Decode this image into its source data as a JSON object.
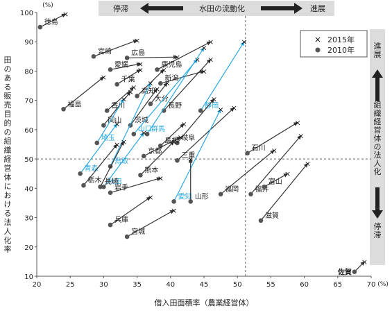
{
  "chart_data": {
    "type": "scatter",
    "title": "",
    "xlabel": "借入田面積率（農業経営体）",
    "ylabel": "田のある販売目的の組織経営体における法人化率",
    "x_unit": "(%)",
    "y_unit": "(%)",
    "xlim": [
      20,
      70
    ],
    "ylim": [
      10,
      100
    ],
    "x_ticks": [
      20,
      25,
      30,
      35,
      40,
      45,
      50,
      55,
      60,
      65,
      70
    ],
    "y_ticks": [
      10,
      20,
      30,
      40,
      50,
      60,
      70,
      80,
      90,
      100
    ],
    "reference_lines": {
      "x": 51.2,
      "y": 50
    },
    "legend": {
      "placement": "top-right",
      "items": [
        {
          "marker": "x",
          "label": "2015年"
        },
        {
          "marker": "circle",
          "label": "2010年"
        }
      ]
    },
    "top_band": {
      "left": "停滞",
      "center": "水田の流動化",
      "right": "進展"
    },
    "right_band": {
      "top": "進展",
      "center": "組織経営体の法人化",
      "bottom": "停滞"
    },
    "colors": {
      "default": "#333333",
      "highlight": "#29a9e0",
      "band": "#dcdcdc",
      "marker": "#111111"
    },
    "series": [
      {
        "pref": "徳島",
        "x2010": 20.5,
        "y2010": 95,
        "x2015": 24.3,
        "y2015": 99.5,
        "hl": false
      },
      {
        "pref": "宮崎",
        "x2010": 28.5,
        "y2010": 85,
        "x2015": 35.0,
        "y2015": 90.5,
        "hl": false
      },
      {
        "pref": "広島",
        "x2010": 33.5,
        "y2010": 84.5,
        "x2015": 41.0,
        "y2015": 84.8,
        "hl": false
      },
      {
        "pref": "愛媛",
        "x2010": 31.0,
        "y2010": 80.5,
        "x2015": 35.5,
        "y2015": 82.5,
        "hl": false
      },
      {
        "pref": "鹿児島",
        "x2010": 38.0,
        "y2010": 80.5,
        "x2015": 46.0,
        "y2015": 90.0,
        "hl": false
      },
      {
        "pref": "千葉",
        "x2010": 32.0,
        "y2010": 75.5,
        "x2015": 35.5,
        "y2015": 80.5,
        "hl": false
      },
      {
        "pref": "新潟",
        "x2010": 38.5,
        "y2010": 75.8,
        "x2015": 45.0,
        "y2015": 80.0,
        "hl": false
      },
      {
        "pref": "高知",
        "x2010": 35.0,
        "y2010": 71.5,
        "x2015": 39.0,
        "y2015": 80.5,
        "hl": false
      },
      {
        "pref": "大分",
        "x2010": 37.0,
        "y2010": 68.8,
        "x2015": 39.5,
        "y2015": 76.0,
        "hl": false
      },
      {
        "pref": "香川",
        "x2010": 30.5,
        "y2010": 66.5,
        "x2015": 34.5,
        "y2015": 74.5,
        "hl": false
      },
      {
        "pref": "福島",
        "x2010": 24.0,
        "y2010": 67.0,
        "x2015": 30.0,
        "y2015": 78.0,
        "hl": false
      },
      {
        "pref": "長野",
        "x2010": 39.0,
        "y2010": 66.5,
        "x2015": 46.0,
        "y2015": 84.0,
        "hl": false
      },
      {
        "pref": "岡山",
        "x2010": 30.0,
        "y2010": 61.5,
        "x2015": 34.0,
        "y2015": 73.0,
        "hl": false
      },
      {
        "pref": "茨城",
        "x2010": 34.0,
        "y2010": 61.5,
        "x2015": 38.0,
        "y2015": 74.0,
        "hl": false
      },
      {
        "pref": "静岡",
        "x2010": 44.5,
        "y2010": 66.5,
        "x2015": 51.0,
        "y2015": 90.0,
        "hl": true
      },
      {
        "pref": "山口",
        "x2010": 34.5,
        "y2010": 58.5,
        "x2015": 44.0,
        "y2015": 84.0,
        "hl": true
      },
      {
        "pref": "群馬",
        "x2010": 36.5,
        "y2010": 58.5,
        "x2015": 45.0,
        "y2015": 88.0,
        "hl": true
      },
      {
        "pref": "岐阜",
        "x2010": 41.0,
        "y2010": 55.5,
        "x2015": 46.5,
        "y2015": 70.5,
        "hl": false
      },
      {
        "pref": "島根",
        "x2010": 38.5,
        "y2010": 54.5,
        "x2015": 42.0,
        "y2015": 62.0,
        "hl": false
      },
      {
        "pref": "京都",
        "x2010": 36.0,
        "y2010": 51.0,
        "x2015": 41.5,
        "y2015": 57.5,
        "hl": false
      },
      {
        "pref": "埼玉",
        "x2010": 29.0,
        "y2010": 55.5,
        "x2015": 33.0,
        "y2015": 70.5,
        "hl": true
      },
      {
        "pref": "鳥取",
        "x2010": 31.0,
        "y2010": 47.5,
        "x2015": 37.0,
        "y2015": 76.0,
        "hl": true
      },
      {
        "pref": "熊本",
        "x2010": 35.5,
        "y2010": 44.5,
        "x2015": 40.5,
        "y2015": 56.0,
        "hl": false
      },
      {
        "pref": "三重",
        "x2010": 41.0,
        "y2010": 49.5,
        "x2015": 49.5,
        "y2015": 67.5,
        "hl": false
      },
      {
        "pref": "石川",
        "x2010": 51.5,
        "y2010": 52.0,
        "x2015": 59.0,
        "y2015": 62.5,
        "hl": false
      },
      {
        "pref": "青森",
        "x2010": 26.5,
        "y2010": 45.0,
        "x2015": 32.0,
        "y2015": 62.0,
        "hl": true
      },
      {
        "pref": "秋田",
        "x2010": 30.0,
        "y2010": 40.5,
        "x2015": 36.0,
        "y2015": 59.0,
        "hl": true
      },
      {
        "pref": "長崎",
        "x2010": 29.5,
        "y2010": 40.5,
        "x2015": 33.0,
        "y2015": 56.0,
        "hl": false
      },
      {
        "pref": "栃木",
        "x2010": 27.0,
        "y2010": 41.0,
        "x2015": 32.0,
        "y2015": 55.0,
        "hl": false
      },
      {
        "pref": "岩手",
        "x2010": 31.0,
        "y2010": 38.5,
        "x2015": 38.5,
        "y2015": 43.5,
        "hl": false
      },
      {
        "pref": "愛知",
        "x2010": 40.5,
        "y2010": 35.5,
        "x2015": 47.5,
        "y2015": 67.0,
        "hl": true
      },
      {
        "pref": "山形",
        "x2010": 43.0,
        "y2010": 35.5,
        "x2015": 43.0,
        "y2015": 50.0,
        "hl": false
      },
      {
        "pref": "福岡",
        "x2010": 47.5,
        "y2010": 38.0,
        "x2015": 55.5,
        "y2015": 53.0,
        "hl": false
      },
      {
        "pref": "福井",
        "x2010": 52.0,
        "y2010": 38.0,
        "x2015": 59.5,
        "y2015": 58.0,
        "hl": false
      },
      {
        "pref": "富山",
        "x2010": 54.0,
        "y2010": 40.5,
        "x2015": 57.5,
        "y2015": 45.0,
        "hl": false
      },
      {
        "pref": "兵庫",
        "x2010": 31.0,
        "y2010": 27.5,
        "x2015": 37.0,
        "y2015": 37.0,
        "hl": false
      },
      {
        "pref": "宮城",
        "x2010": 33.5,
        "y2010": 23.5,
        "x2015": 40.5,
        "y2015": 32.5,
        "hl": false
      },
      {
        "pref": "滋賀",
        "x2010": 53.5,
        "y2010": 29.0,
        "x2015": 60.5,
        "y2015": 48.5,
        "hl": false
      },
      {
        "pref": "佐賀",
        "x2010": 67.5,
        "y2010": 11.5,
        "x2015": 69.0,
        "y2015": 15.0,
        "hl": false
      }
    ]
  }
}
